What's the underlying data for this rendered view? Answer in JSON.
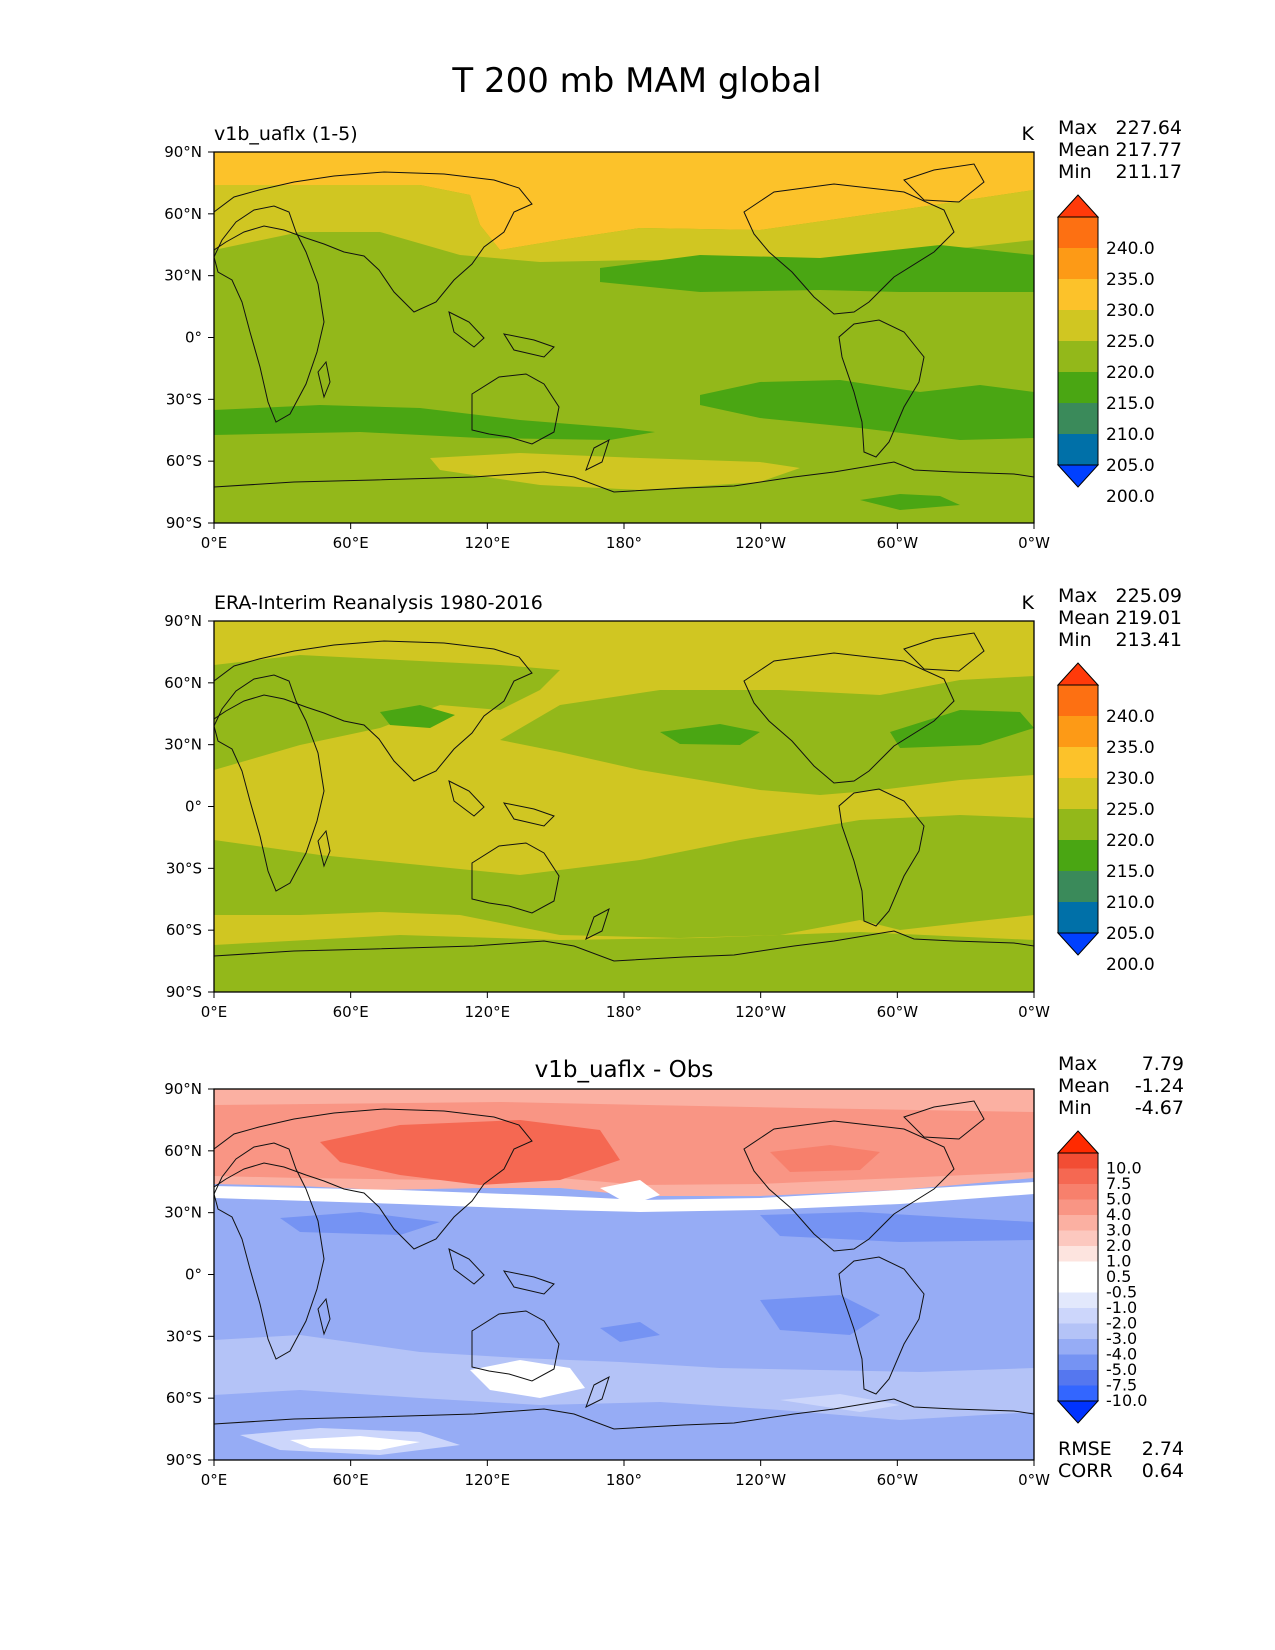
{
  "figure_title": "T 200 mb MAM global",
  "lon_ticks": [
    "0°E",
    "60°E",
    "120°E",
    "180°",
    "120°W",
    "60°W",
    "0°W"
  ],
  "lat_ticks": [
    "90°N",
    "60°N",
    "30°N",
    "0°",
    "30°S",
    "60°S",
    "90°S"
  ],
  "stat_labels": {
    "max": "Max",
    "mean": "Mean",
    "min": "Min",
    "rmse": "RMSE",
    "corr": "CORR"
  },
  "colors": {
    "abs_levels": [
      "#0040ff",
      "#0070a8",
      "#3a8a5a",
      "#4aa613",
      "#93b81a",
      "#d0c622",
      "#fcc22a",
      "#fd9a16",
      "#fd7012",
      "#ff3a0a"
    ],
    "diff_levels": [
      "#0033ff",
      "#3366ff",
      "#5577ef",
      "#7593f3",
      "#96acf5",
      "#b4c3f7",
      "#ccd6fb",
      "#e2e8fc",
      "#ffffff",
      "#ffffff",
      "#fde4df",
      "#fcc8bf",
      "#fbb0a2",
      "#f99584",
      "#f7806c",
      "#f56852",
      "#f24d34",
      "#ff2a00"
    ]
  },
  "chart_data": [
    {
      "type": "heatmap",
      "title_left": "v1b_uaflx (1-5)",
      "units": "K",
      "stats": {
        "max": "227.64",
        "mean": "217.77",
        "min": "211.17"
      },
      "colorbar_ticks": [
        "240.0",
        "235.0",
        "230.0",
        "225.0",
        "220.0",
        "215.0",
        "210.0",
        "205.0",
        "200.0"
      ],
      "levels": [
        200,
        205,
        210,
        215,
        220,
        225,
        230,
        235,
        240
      ],
      "xlim": [
        0,
        360
      ],
      "ylim": [
        -90,
        90
      ]
    },
    {
      "type": "heatmap",
      "title_left": "ERA-Interim Reanalysis 1980-2016",
      "units": "K",
      "stats": {
        "max": "225.09",
        "mean": "219.01",
        "min": "213.41"
      },
      "colorbar_ticks": [
        "240.0",
        "235.0",
        "230.0",
        "225.0",
        "220.0",
        "215.0",
        "210.0",
        "205.0",
        "200.0"
      ],
      "levels": [
        200,
        205,
        210,
        215,
        220,
        225,
        230,
        235,
        240
      ],
      "xlim": [
        0,
        360
      ],
      "ylim": [
        -90,
        90
      ]
    },
    {
      "type": "heatmap",
      "title_center": "v1b_uaflx - Obs",
      "stats": {
        "max": "7.79",
        "mean": "-1.24",
        "min": "-4.67",
        "rmse": "2.74",
        "corr": "0.64"
      },
      "colorbar_ticks": [
        "10.0",
        "7.5",
        "5.0",
        "4.0",
        "3.0",
        "2.0",
        "1.0",
        "0.5",
        "-0.5",
        "-1.0",
        "-2.0",
        "-3.0",
        "-4.0",
        "-5.0",
        "-7.5",
        "-10.0"
      ],
      "levels": [
        -10,
        -7.5,
        -5,
        -4,
        -3,
        -2,
        -1,
        -0.5,
        0.5,
        1,
        2,
        3,
        4,
        5,
        7.5,
        10
      ],
      "xlim": [
        0,
        360
      ],
      "ylim": [
        -90,
        90
      ]
    }
  ]
}
